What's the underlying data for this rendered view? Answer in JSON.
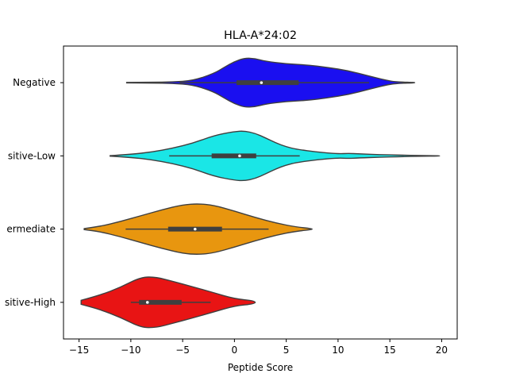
{
  "chart_data": {
    "type": "violin",
    "orientation": "horizontal",
    "title": "HLA-A*24:02",
    "xlabel": "Peptide Score",
    "ylabel": "",
    "xlim": [
      -16.5,
      21.5
    ],
    "xticks": [
      -15,
      -10,
      -5,
      0,
      5,
      10,
      15,
      20
    ],
    "xtick_labels": [
      "−15",
      "−10",
      "−5",
      "0",
      "5",
      "10",
      "15",
      "20"
    ],
    "grid": false,
    "categories": [
      "Negative",
      "Positive-Low",
      "Intermediate",
      "Positive-High"
    ],
    "category_labels_visible": [
      "Negative",
      "sitive-Low",
      "ermediate",
      "sitive-High"
    ],
    "series": [
      {
        "category": "Negative",
        "color": "#1a0ff0",
        "range": [
          -10.4,
          17.4
        ],
        "box": {
          "q1": 0.2,
          "median": 2.6,
          "q3": 6.2
        },
        "whiskers": [
          -5.3,
          13.0
        ],
        "density": [
          [
            -10.4,
            0.01
          ],
          [
            -8,
            0.015
          ],
          [
            -6,
            0.03
          ],
          [
            -4,
            0.08
          ],
          [
            -2,
            0.36
          ],
          [
            -1,
            0.6
          ],
          [
            0,
            0.83
          ],
          [
            1,
            0.97
          ],
          [
            2,
            0.95
          ],
          [
            3,
            0.84
          ],
          [
            5,
            0.74
          ],
          [
            7,
            0.7
          ],
          [
            9,
            0.6
          ],
          [
            11,
            0.47
          ],
          [
            13,
            0.26
          ],
          [
            15,
            0.06
          ],
          [
            16,
            0.025
          ],
          [
            17.4,
            0.008
          ]
        ]
      },
      {
        "category": "Positive-Low",
        "color": "#1ae6e6",
        "range": [
          -12.0,
          19.8
        ],
        "box": {
          "q1": -2.2,
          "median": 0.5,
          "q3": 2.1
        },
        "whiskers": [
          -6.3,
          6.3
        ],
        "density": [
          [
            -12.0,
            0.01
          ],
          [
            -10,
            0.06
          ],
          [
            -8,
            0.15
          ],
          [
            -6,
            0.3
          ],
          [
            -4,
            0.5
          ],
          [
            -2,
            0.8
          ],
          [
            0,
            0.96
          ],
          [
            1,
            0.98
          ],
          [
            2,
            0.89
          ],
          [
            3,
            0.71
          ],
          [
            4,
            0.51
          ],
          [
            5,
            0.36
          ],
          [
            6,
            0.26
          ],
          [
            8,
            0.15
          ],
          [
            10,
            0.08
          ],
          [
            11,
            0.1
          ],
          [
            12,
            0.08
          ],
          [
            14,
            0.05
          ],
          [
            16,
            0.03
          ],
          [
            18,
            0.015
          ],
          [
            19.8,
            0.005
          ]
        ]
      },
      {
        "category": "Intermediate",
        "color": "#e8960f",
        "range": [
          -14.5,
          7.5
        ],
        "box": {
          "q1": -6.4,
          "median": -3.8,
          "q3": -1.2
        },
        "whiskers": [
          -10.5,
          3.3
        ],
        "density": [
          [
            -14.5,
            0.02
          ],
          [
            -13,
            0.1
          ],
          [
            -11,
            0.3
          ],
          [
            -9,
            0.53
          ],
          [
            -7,
            0.76
          ],
          [
            -5,
            0.96
          ],
          [
            -3.5,
            1.0
          ],
          [
            -2,
            0.94
          ],
          [
            0,
            0.71
          ],
          [
            2,
            0.46
          ],
          [
            4,
            0.24
          ],
          [
            6,
            0.08
          ],
          [
            7.5,
            0.02
          ]
        ]
      },
      {
        "category": "Positive-High",
        "color": "#e81414",
        "range": [
          -14.8,
          2.0
        ],
        "box": {
          "q1": -9.2,
          "median": -8.4,
          "q3": -5.1
        },
        "whiskers": [
          -10.0,
          -2.3
        ],
        "density": [
          [
            -14.8,
            0.08
          ],
          [
            -13,
            0.28
          ],
          [
            -11,
            0.59
          ],
          [
            -9,
            1.0
          ],
          [
            -7.5,
            0.99
          ],
          [
            -6,
            0.83
          ],
          [
            -4,
            0.61
          ],
          [
            -2,
            0.38
          ],
          [
            0,
            0.14
          ],
          [
            2.0,
            0.06
          ]
        ]
      }
    ]
  }
}
